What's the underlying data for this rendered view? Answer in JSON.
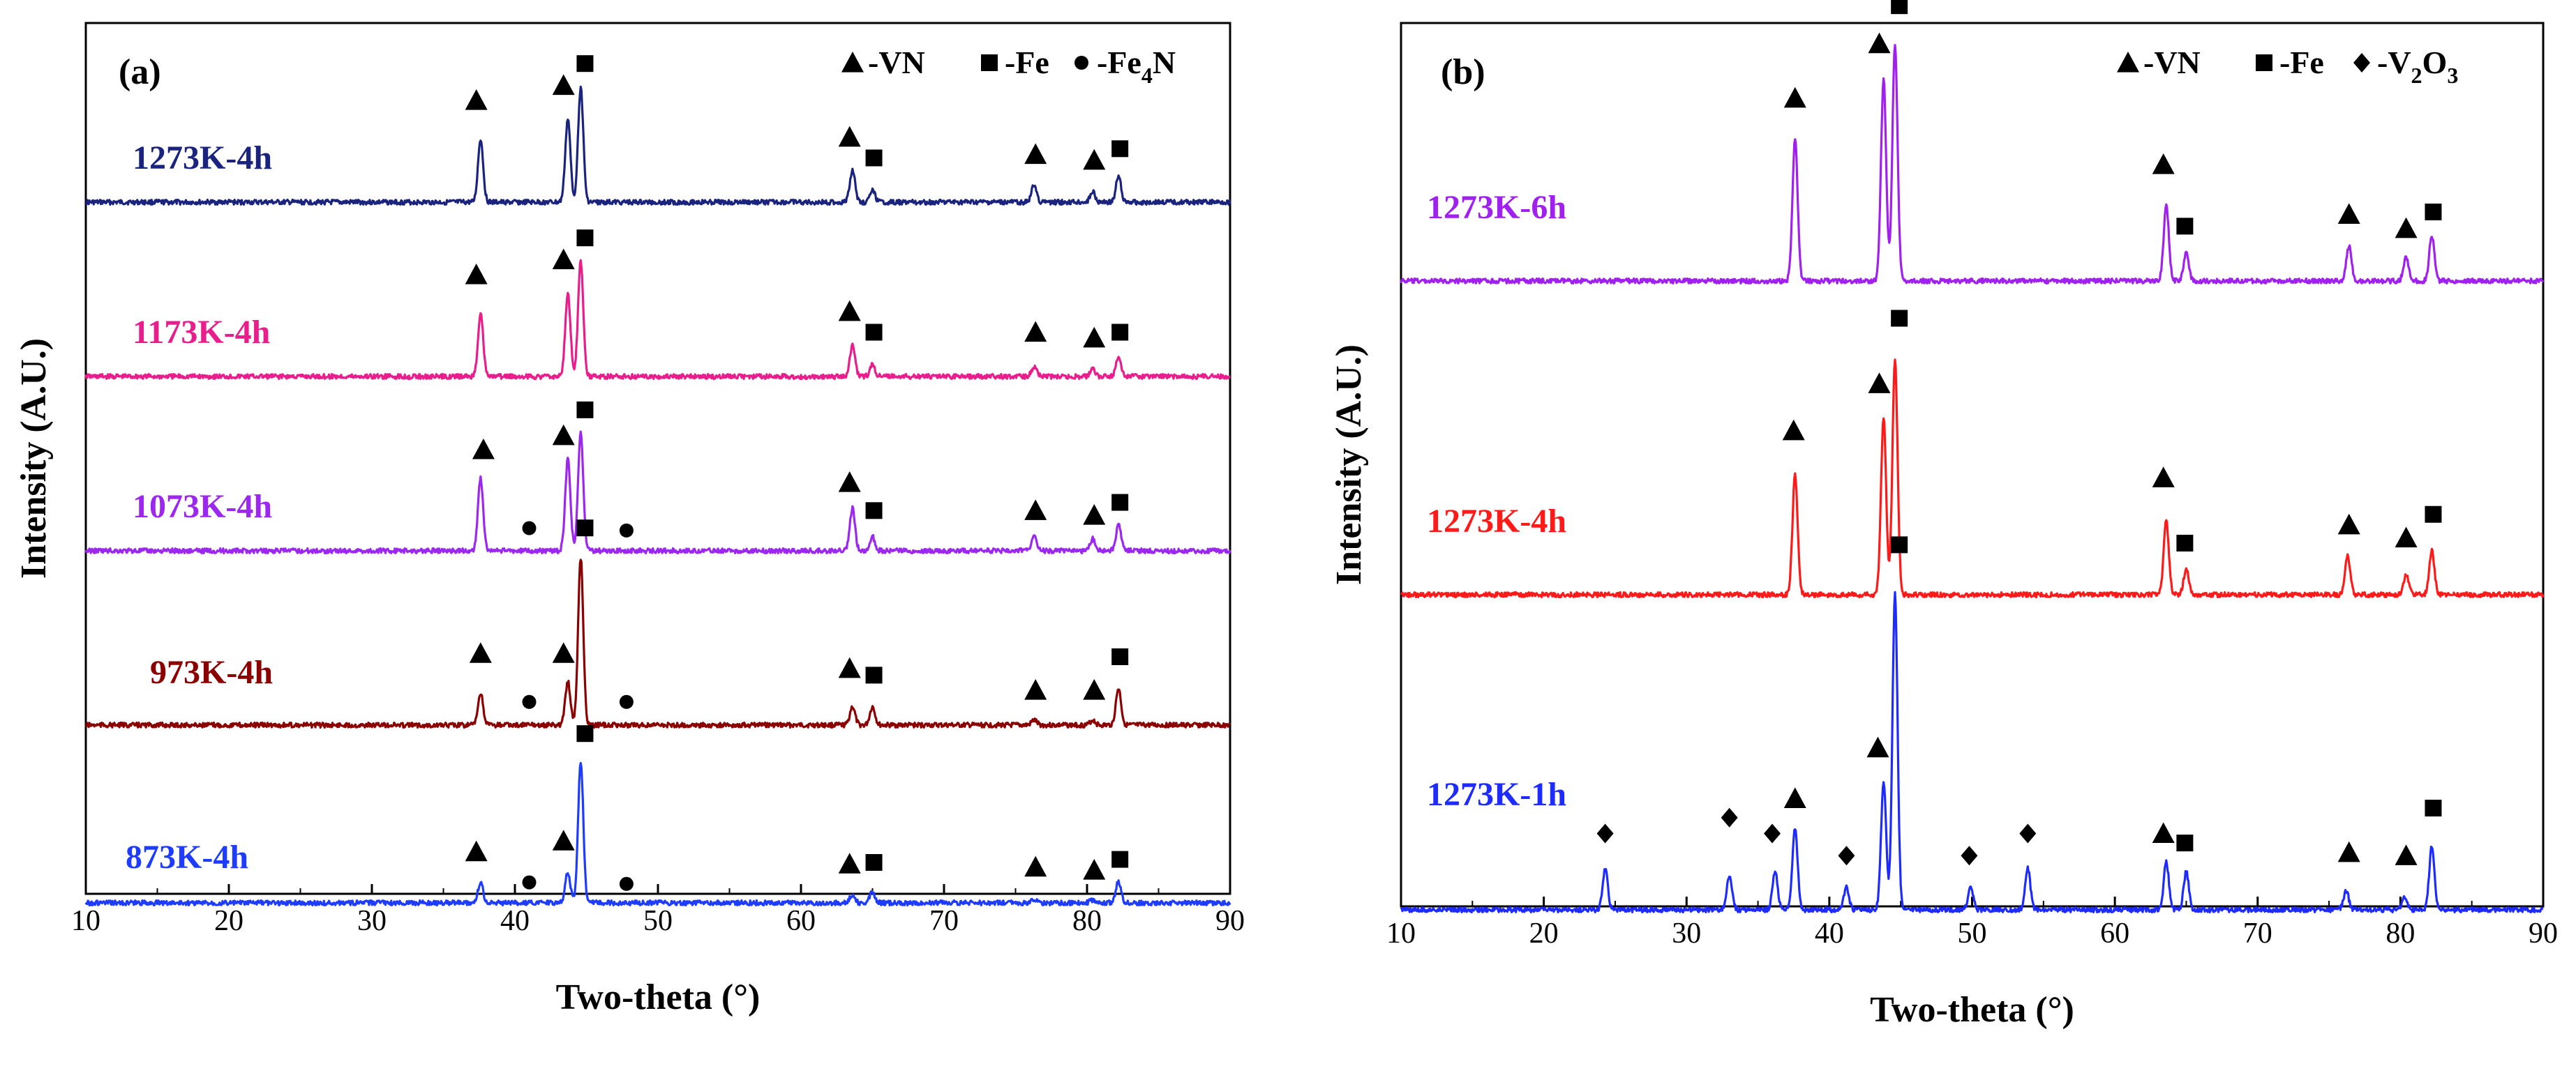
{
  "chart_data": [
    {
      "panel": "(a)",
      "type": "line",
      "xlabel": "Two-theta (°)",
      "ylabel": "Intensity (A.U.)",
      "xlim": [
        10,
        90
      ],
      "xticks": [
        10,
        20,
        30,
        40,
        50,
        60,
        70,
        80,
        90
      ],
      "legend": [
        {
          "marker": "triangle",
          "text": "-VN"
        },
        {
          "marker": "square",
          "text": "-Fe"
        },
        {
          "marker": "circle",
          "text": "-Fe",
          "sub": "4",
          "tail": "N"
        }
      ],
      "series": [
        {
          "name": "1273K-4h",
          "color": "#1a237e",
          "peaks": [
            [
              37.6,
              0.55
            ],
            [
              43.7,
              0.72
            ],
            [
              44.6,
              1.0
            ],
            [
              63.6,
              0.28
            ],
            [
              65.0,
              0.1
            ],
            [
              76.3,
              0.15
            ],
            [
              80.4,
              0.09
            ],
            [
              82.2,
              0.22
            ]
          ],
          "markers": [
            [
              "triangle",
              37.3,
              0.8
            ],
            [
              "triangle",
              43.4,
              0.93
            ],
            [
              "square",
              44.9,
              1.12
            ],
            [
              "triangle",
              63.4,
              0.48
            ],
            [
              "square",
              65.1,
              0.3
            ],
            [
              "triangle",
              76.4,
              0.33
            ],
            [
              "triangle",
              80.5,
              0.28
            ],
            [
              "square",
              82.3,
              0.38
            ]
          ]
        },
        {
          "name": "1173K-4h",
          "color": "#e91e8c",
          "peaks": [
            [
              37.6,
              0.55
            ],
            [
              43.7,
              0.72
            ],
            [
              44.6,
              1.0
            ],
            [
              63.6,
              0.27
            ],
            [
              65.0,
              0.1
            ],
            [
              76.3,
              0.08
            ],
            [
              80.4,
              0.06
            ],
            [
              82.2,
              0.18
            ]
          ],
          "markers": [
            [
              "triangle",
              37.3,
              0.8
            ],
            [
              "triangle",
              43.4,
              0.93
            ],
            [
              "square",
              44.9,
              1.12
            ],
            [
              "triangle",
              63.4,
              0.48
            ],
            [
              "square",
              65.1,
              0.3
            ],
            [
              "triangle",
              76.4,
              0.3
            ],
            [
              "triangle",
              80.5,
              0.25
            ],
            [
              "square",
              82.3,
              0.3
            ]
          ]
        },
        {
          "name": "1073K-4h",
          "color": "#9c27f0",
          "peaks": [
            [
              37.6,
              0.62
            ],
            [
              43.7,
              0.78
            ],
            [
              44.6,
              1.0
            ],
            [
              63.6,
              0.36
            ],
            [
              65.0,
              0.12
            ],
            [
              76.3,
              0.14
            ],
            [
              80.4,
              0.1
            ],
            [
              82.2,
              0.22
            ]
          ],
          "markers": [
            [
              "triangle",
              37.8,
              0.78
            ],
            [
              "triangle",
              43.4,
              0.9
            ],
            [
              "square",
              44.9,
              1.12
            ],
            [
              "triangle",
              63.4,
              0.5
            ],
            [
              "square",
              65.1,
              0.26
            ],
            [
              "triangle",
              76.4,
              0.26
            ],
            [
              "triangle",
              80.5,
              0.22
            ],
            [
              "square",
              82.3,
              0.33
            ],
            [
              "circle",
              41.0,
              0.11
            ],
            [
              "circle",
              47.8,
              0.09
            ]
          ]
        },
        {
          "name": "973K-4h",
          "color": "#8b0000",
          "peaks": [
            [
              37.6,
              0.19
            ],
            [
              43.7,
              0.26
            ],
            [
              44.6,
              1.0
            ],
            [
              63.6,
              0.11
            ],
            [
              65.0,
              0.11
            ],
            [
              76.3,
              0.03
            ],
            [
              80.4,
              0.03
            ],
            [
              82.2,
              0.22
            ]
          ],
          "markers": [
            [
              "triangle",
              37.6,
              0.37
            ],
            [
              "triangle",
              43.4,
              0.37
            ],
            [
              "square",
              44.9,
              1.12
            ],
            [
              "triangle",
              63.4,
              0.28
            ],
            [
              "square",
              65.1,
              0.24
            ],
            [
              "triangle",
              76.4,
              0.15
            ],
            [
              "triangle",
              80.5,
              0.15
            ],
            [
              "square",
              82.3,
              0.35
            ],
            [
              "circle",
              41.0,
              0.08
            ],
            [
              "circle",
              47.8,
              0.08
            ]
          ]
        },
        {
          "name": "873K-4h",
          "color": "#1e3cff",
          "peaks": [
            [
              37.6,
              0.13
            ],
            [
              43.7,
              0.2
            ],
            [
              44.6,
              0.92
            ],
            [
              63.6,
              0.05
            ],
            [
              65.0,
              0.07
            ],
            [
              76.3,
              0.02
            ],
            [
              80.4,
              0.02
            ],
            [
              82.2,
              0.14
            ]
          ],
          "markers": [
            [
              "triangle",
              37.3,
              0.27
            ],
            [
              "triangle",
              43.4,
              0.34
            ],
            [
              "square",
              44.9,
              1.04
            ],
            [
              "triangle",
              63.4,
              0.19
            ],
            [
              "square",
              65.1,
              0.2
            ],
            [
              "triangle",
              76.4,
              0.17
            ],
            [
              "triangle",
              80.5,
              0.15
            ],
            [
              "square",
              82.3,
              0.22
            ],
            [
              "circle",
              41.0,
              0.07
            ],
            [
              "circle",
              47.8,
              0.06
            ]
          ]
        }
      ]
    },
    {
      "panel": "(b)",
      "type": "line",
      "xlabel": "Two-theta (°)",
      "ylabel": "Intensity (A.U.)",
      "xlim": [
        10,
        90
      ],
      "xticks": [
        10,
        20,
        30,
        40,
        50,
        60,
        70,
        80,
        90
      ],
      "legend": [
        {
          "marker": "triangle",
          "text": "-VN"
        },
        {
          "marker": "square",
          "text": "-Fe"
        },
        {
          "marker": "diamond",
          "text": "-V",
          "sub": "2",
          "tail": "O",
          "sub2": "3"
        }
      ],
      "series": [
        {
          "name": "1273K-6h",
          "color": "#a020f0",
          "peaks": [
            [
              37.6,
              0.6
            ],
            [
              43.8,
              0.85
            ],
            [
              44.6,
              1.0
            ],
            [
              63.6,
              0.32
            ],
            [
              65.0,
              0.12
            ],
            [
              76.4,
              0.15
            ],
            [
              80.4,
              0.1
            ],
            [
              82.2,
              0.19
            ]
          ],
          "markers": [
            [
              "triangle",
              37.6,
              0.73
            ],
            [
              "triangle",
              43.5,
              0.96
            ],
            [
              "square",
              44.9,
              1.12
            ],
            [
              "triangle",
              63.4,
              0.45
            ],
            [
              "square",
              64.9,
              0.19
            ],
            [
              "triangle",
              76.4,
              0.24
            ],
            [
              "triangle",
              80.4,
              0.18
            ],
            [
              "square",
              82.3,
              0.25
            ]
          ]
        },
        {
          "name": "1273K-4h",
          "color": "#ff1a1a",
          "peaks": [
            [
              37.6,
              0.46
            ],
            [
              43.8,
              0.68
            ],
            [
              44.6,
              0.9
            ],
            [
              63.6,
              0.28
            ],
            [
              65.0,
              0.1
            ],
            [
              76.3,
              0.15
            ],
            [
              80.4,
              0.08
            ],
            [
              82.2,
              0.17
            ]
          ],
          "markers": [
            [
              "triangle",
              37.5,
              0.59
            ],
            [
              "triangle",
              43.5,
              0.77
            ],
            [
              "square",
              44.9,
              1.02
            ],
            [
              "triangle",
              63.4,
              0.41
            ],
            [
              "square",
              64.9,
              0.16
            ],
            [
              "triangle",
              76.4,
              0.23
            ],
            [
              "triangle",
              80.4,
              0.18
            ],
            [
              "square",
              82.3,
              0.27
            ]
          ]
        },
        {
          "name": "1273K-1h",
          "color": "#1e2bff",
          "peaks": [
            [
              24.3,
              0.13
            ],
            [
              33.0,
              0.11
            ],
            [
              36.2,
              0.12
            ],
            [
              37.6,
              0.26
            ],
            [
              41.2,
              0.07
            ],
            [
              43.8,
              0.4
            ],
            [
              44.6,
              1.0
            ],
            [
              49.9,
              0.07
            ],
            [
              53.9,
              0.13
            ],
            [
              63.6,
              0.15
            ],
            [
              65.0,
              0.12
            ],
            [
              76.2,
              0.06
            ],
            [
              80.3,
              0.04
            ],
            [
              82.2,
              0.2
            ]
          ],
          "markers": [
            [
              "diamond",
              24.3,
              0.21
            ],
            [
              "diamond",
              33.0,
              0.26
            ],
            [
              "diamond",
              36.0,
              0.21
            ],
            [
              "triangle",
              37.6,
              0.32
            ],
            [
              "diamond",
              41.2,
              0.14
            ],
            [
              "triangle",
              43.4,
              0.48
            ],
            [
              "square",
              44.9,
              1.12
            ],
            [
              "diamond",
              49.8,
              0.14
            ],
            [
              "diamond",
              53.9,
              0.21
            ],
            [
              "triangle",
              63.4,
              0.21
            ],
            [
              "square",
              64.9,
              0.18
            ],
            [
              "triangle",
              76.4,
              0.15
            ],
            [
              "triangle",
              80.4,
              0.14
            ],
            [
              "square",
              82.3,
              0.29
            ]
          ]
        }
      ]
    }
  ]
}
